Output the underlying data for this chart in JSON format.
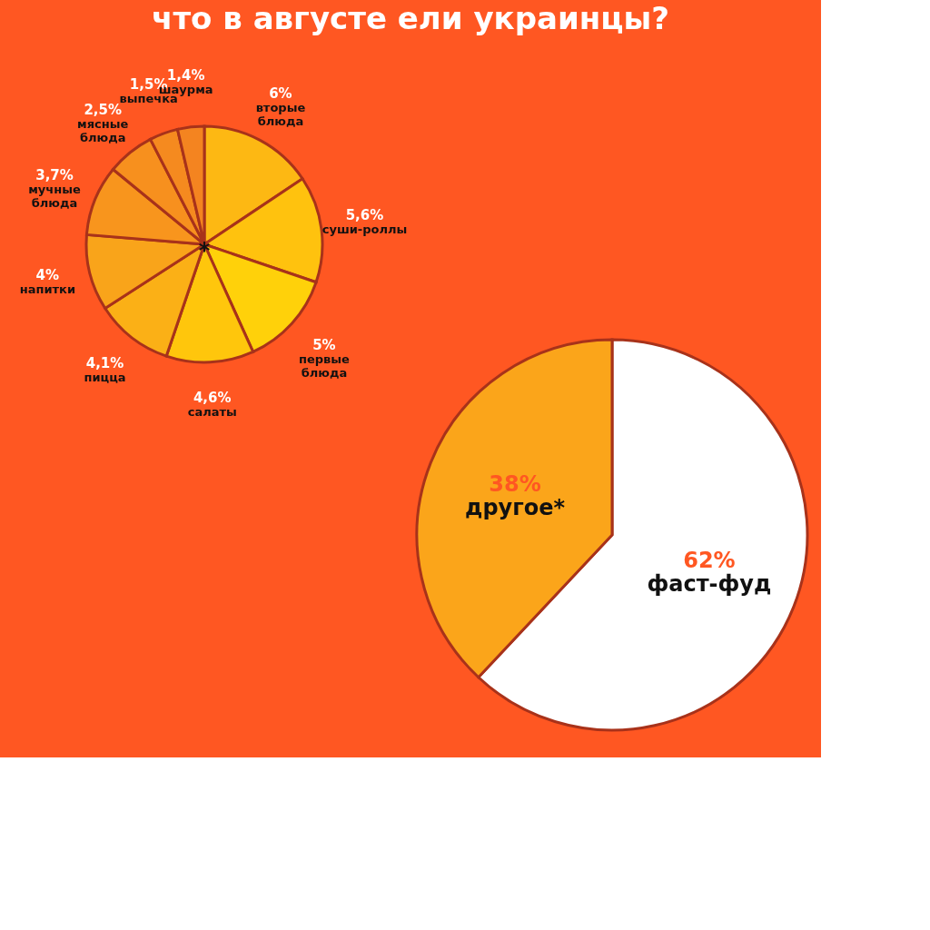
{
  "chart_data": [
    {
      "type": "pie",
      "title": "что в августе ели украинцы?",
      "categories": [
        "вторые блюда",
        "суши-роллы",
        "первые блюда",
        "салаты",
        "пицца",
        "напитки",
        "мучные блюда",
        "мясные блюда",
        "выпечка",
        "шаурма"
      ],
      "values": [
        6,
        5.6,
        5,
        4.6,
        4.1,
        4,
        3.7,
        2.5,
        1.5,
        1.4
      ],
      "value_labels": [
        "6%",
        "5,6%",
        "5%",
        "4,6%",
        "4,1%",
        "4%",
        "3,7%",
        "2,5%",
        "1,5%",
        "1,4%"
      ],
      "colors": [
        "#fdb813",
        "#ffc20e",
        "#ffd10a",
        "#ffc60c",
        "#fbb016",
        "#f9a41a",
        "#f8951d",
        "#f7901e",
        "#f58a1f",
        "#f48420"
      ],
      "annotations": [
        "*"
      ]
    },
    {
      "type": "pie",
      "categories": [
        "фаст-фуд",
        "другое*"
      ],
      "values": [
        62,
        38
      ],
      "value_labels": [
        "62%",
        "38%"
      ],
      "colors": [
        "#ffffff",
        "#fba51a"
      ]
    }
  ]
}
